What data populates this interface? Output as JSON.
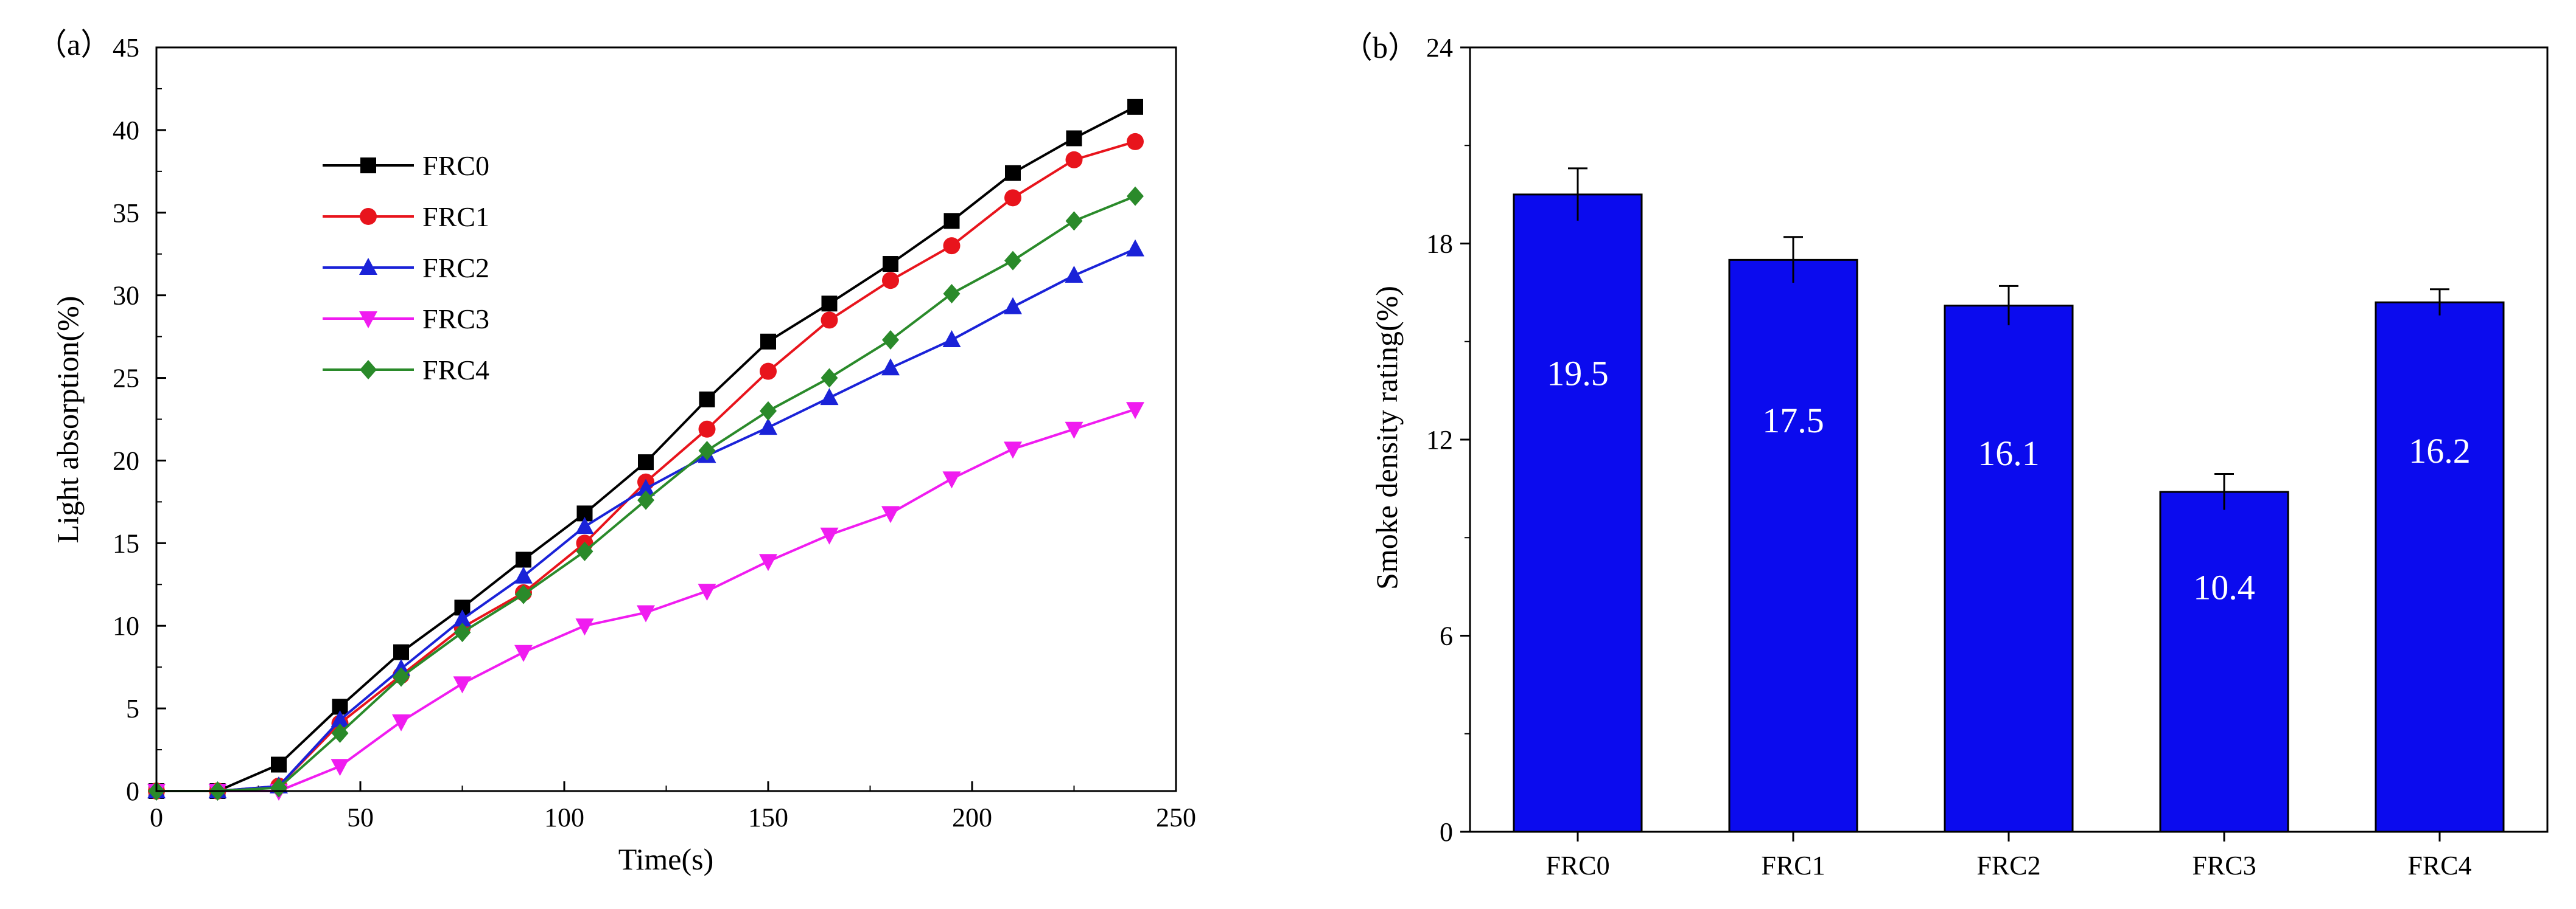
{
  "chart_data": [
    {
      "type": "line",
      "panel_label": "（a）",
      "xlabel": "Time(s)",
      "ylabel": "Light absorption(%)",
      "xlim": [
        0,
        250
      ],
      "ylim": [
        0,
        45
      ],
      "xticks": [
        "0",
        "50",
        "100",
        "150",
        "200",
        "250"
      ],
      "yticks": [
        "0",
        "5",
        "10",
        "15",
        "20",
        "25",
        "30",
        "35",
        "40",
        "45"
      ],
      "legend_position": "upper-left",
      "x": [
        0,
        15,
        30,
        45,
        60,
        75,
        90,
        105,
        120,
        135,
        150,
        165,
        180,
        195,
        210,
        225,
        240
      ],
      "series": [
        {
          "name": "FRC0",
          "color": "#000000",
          "marker": "square",
          "values": [
            0,
            0,
            1.6,
            5.1,
            8.4,
            11.1,
            14.0,
            16.8,
            19.9,
            23.7,
            27.2,
            29.5,
            31.9,
            34.5,
            37.4,
            39.5,
            41.4
          ]
        },
        {
          "name": "FRC1",
          "color": "#e8141c",
          "marker": "circle",
          "values": [
            0,
            0,
            0.3,
            4.1,
            7.0,
            9.9,
            12.0,
            15.0,
            18.7,
            21.9,
            25.4,
            28.5,
            30.9,
            33.0,
            35.9,
            38.2,
            39.3
          ]
        },
        {
          "name": "FRC2",
          "color": "#1a22d8",
          "marker": "triangle-up",
          "values": [
            0,
            0,
            0.3,
            4.3,
            7.4,
            10.4,
            13.0,
            16.0,
            18.3,
            20.3,
            22.0,
            23.8,
            25.6,
            27.3,
            29.3,
            31.2,
            32.8
          ]
        },
        {
          "name": "FRC3",
          "color": "#f01cf0",
          "marker": "triangle-down",
          "values": [
            0,
            0,
            0,
            1.5,
            4.2,
            6.5,
            8.4,
            10.0,
            10.8,
            12.1,
            13.9,
            15.5,
            16.8,
            18.9,
            20.7,
            21.9,
            23.1
          ]
        },
        {
          "name": "FRC4",
          "color": "#2a8a2a",
          "marker": "diamond",
          "values": [
            0,
            0,
            0.2,
            3.5,
            6.9,
            9.6,
            11.9,
            14.5,
            17.6,
            20.6,
            23.0,
            25.0,
            27.3,
            30.1,
            32.1,
            34.5,
            36.0
          ]
        }
      ]
    },
    {
      "type": "bar",
      "panel_label": "（b）",
      "xlabel": "",
      "ylabel": "Smoke density rating(%)",
      "ylim": [
        0,
        24
      ],
      "yticks": [
        "0",
        "6",
        "12",
        "18",
        "24"
      ],
      "categories": [
        "FRC0",
        "FRC1",
        "FRC2",
        "FRC3",
        "FRC4"
      ],
      "values": [
        19.5,
        17.5,
        16.1,
        10.4,
        16.2
      ],
      "value_labels": [
        "19.5",
        "17.5",
        "16.1",
        "10.4",
        "16.2"
      ],
      "error": [
        0.8,
        0.7,
        0.6,
        0.55,
        0.4
      ],
      "bar_color": "#0b0bee"
    }
  ]
}
